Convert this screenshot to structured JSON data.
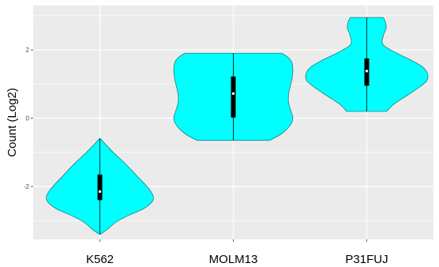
{
  "chart_data": {
    "type": "violin",
    "title": "",
    "xlabel": "",
    "ylabel": "Count (Log2)",
    "categories": [
      "K562",
      "MOLM13",
      "P31FUJ"
    ],
    "ylim": [
      -3.55,
      3.3
    ],
    "yticks": [
      -2,
      0,
      2
    ],
    "ytick_labels": [
      "-2",
      "0",
      "2"
    ],
    "grid": true,
    "fill_color": "#00FFFF",
    "outline_color": "#1a8080",
    "panel_color": "#EBEBEB",
    "grid_color": "#FFFFFF",
    "violins": [
      {
        "category": "K562",
        "min": -3.4,
        "max": -0.6,
        "q1": -2.4,
        "median": -2.15,
        "q3": -1.65,
        "profile": [
          [
            -3.4,
            0.01
          ],
          [
            -3.25,
            0.13
          ],
          [
            -3.05,
            0.26
          ],
          [
            -2.85,
            0.47
          ],
          [
            -2.65,
            0.72
          ],
          [
            -2.45,
            0.86
          ],
          [
            -2.3,
            0.88
          ],
          [
            -2.15,
            0.84
          ],
          [
            -1.95,
            0.75
          ],
          [
            -1.75,
            0.64
          ],
          [
            -1.5,
            0.51
          ],
          [
            -1.25,
            0.37
          ],
          [
            -1.0,
            0.22
          ],
          [
            -0.8,
            0.11
          ],
          [
            -0.6,
            0.01
          ]
        ]
      },
      {
        "category": "MOLM13",
        "min": -0.65,
        "max": 1.9,
        "q1": 0.02,
        "median": 0.72,
        "q3": 1.22,
        "profile": [
          [
            -0.65,
            0.6
          ],
          [
            -0.45,
            0.8
          ],
          [
            -0.2,
            0.94
          ],
          [
            0.0,
            0.98
          ],
          [
            0.2,
            0.95
          ],
          [
            0.45,
            0.91
          ],
          [
            0.7,
            0.91
          ],
          [
            0.95,
            0.94
          ],
          [
            1.2,
            0.97
          ],
          [
            1.45,
            0.98
          ],
          [
            1.65,
            0.96
          ],
          [
            1.8,
            0.89
          ],
          [
            1.9,
            0.8
          ]
        ]
      },
      {
        "category": "P31FUJ",
        "min": 0.2,
        "max": 2.95,
        "q1": 0.95,
        "median": 1.38,
        "q3": 1.75,
        "profile": [
          [
            0.2,
            0.33
          ],
          [
            0.4,
            0.44
          ],
          [
            0.65,
            0.65
          ],
          [
            0.9,
            0.86
          ],
          [
            1.1,
            0.99
          ],
          [
            1.3,
            1.0
          ],
          [
            1.5,
            0.92
          ],
          [
            1.7,
            0.73
          ],
          [
            1.9,
            0.5
          ],
          [
            2.15,
            0.27
          ],
          [
            2.4,
            0.27
          ],
          [
            2.65,
            0.32
          ],
          [
            2.85,
            0.3
          ],
          [
            2.95,
            0.27
          ]
        ]
      }
    ]
  }
}
